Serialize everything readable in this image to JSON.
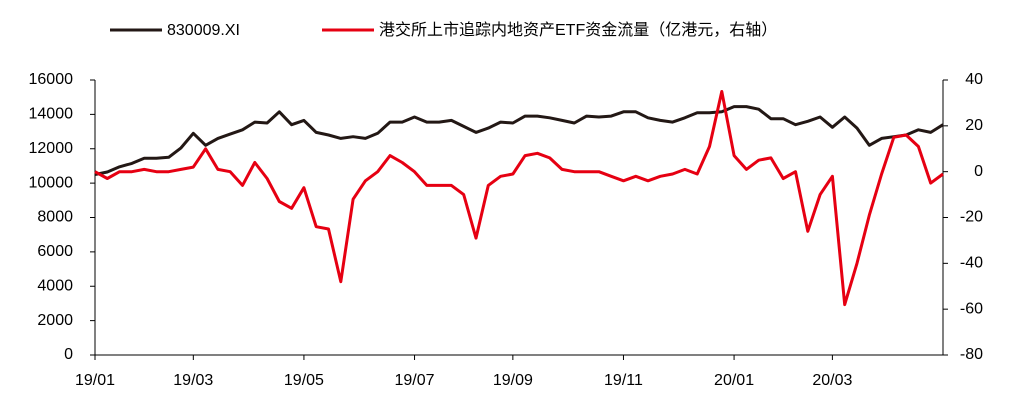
{
  "chart_data": {
    "type": "line",
    "categories": [
      "19/01",
      null,
      null,
      null,
      null,
      null,
      null,
      null,
      "19/03",
      null,
      null,
      null,
      null,
      null,
      null,
      null,
      null,
      "19/05",
      null,
      null,
      null,
      null,
      null,
      null,
      null,
      null,
      "19/07",
      null,
      null,
      null,
      null,
      null,
      null,
      null,
      "19/09",
      null,
      null,
      null,
      null,
      null,
      null,
      null,
      null,
      "19/11",
      null,
      null,
      null,
      null,
      null,
      null,
      null,
      null,
      "20/01",
      null,
      null,
      null,
      null,
      null,
      null,
      null,
      "20/03",
      null,
      null,
      null,
      null,
      null,
      null,
      null,
      null,
      null
    ],
    "series": [
      {
        "name": "830009.XI",
        "color": "#231815",
        "axis": "y",
        "values": [
          10500,
          10650,
          10950,
          11150,
          11450,
          11450,
          11500,
          12050,
          12900,
          12200,
          12600,
          12850,
          13100,
          13550,
          13500,
          14150,
          13400,
          13650,
          12950,
          12800,
          12600,
          12700,
          12600,
          12900,
          13550,
          13550,
          13850,
          13550,
          13550,
          13650,
          13300,
          12950,
          13200,
          13550,
          13500,
          13900,
          13900,
          13800,
          13650,
          13500,
          13900,
          13850,
          13900,
          14150,
          14150,
          13800,
          13650,
          13550,
          13800,
          14100,
          14100,
          14150,
          14450,
          14450,
          14300,
          13750,
          13750,
          13400,
          13600,
          13850,
          13250,
          13850,
          13200,
          12200,
          12600,
          12700,
          12800,
          13100,
          12950,
          13400
        ]
      },
      {
        "name": "港交所上市追踪内地资产ETF资金流量（亿港元，右轴）",
        "color": "#e60012",
        "axis": "y2",
        "values": [
          0,
          -3,
          0,
          0,
          1,
          0,
          0,
          1,
          2,
          10,
          1,
          0,
          -6,
          4,
          -3,
          -13,
          -16,
          -7,
          -24,
          -25,
          -48,
          -12,
          -4,
          0,
          7,
          4,
          0,
          -6,
          -6,
          -6,
          -10,
          -29,
          -6,
          -2,
          -1,
          7,
          8,
          6,
          1,
          0,
          0,
          0,
          -2,
          -4,
          -2,
          -4,
          -2,
          -1,
          1,
          -1,
          11,
          35,
          7,
          1,
          5,
          6,
          -3,
          0,
          -26,
          -10,
          -2,
          -58,
          -40,
          -19,
          -1,
          15,
          16,
          11,
          -5,
          -1
        ]
      }
    ],
    "ylim": [
      0,
      16000
    ],
    "yticks": [
      0,
      2000,
      4000,
      6000,
      8000,
      10000,
      12000,
      14000,
      16000
    ],
    "y2lim": [
      -80,
      40
    ],
    "y2ticks": [
      -80,
      -60,
      -40,
      -20,
      0,
      20,
      40
    ],
    "legend": "top"
  }
}
